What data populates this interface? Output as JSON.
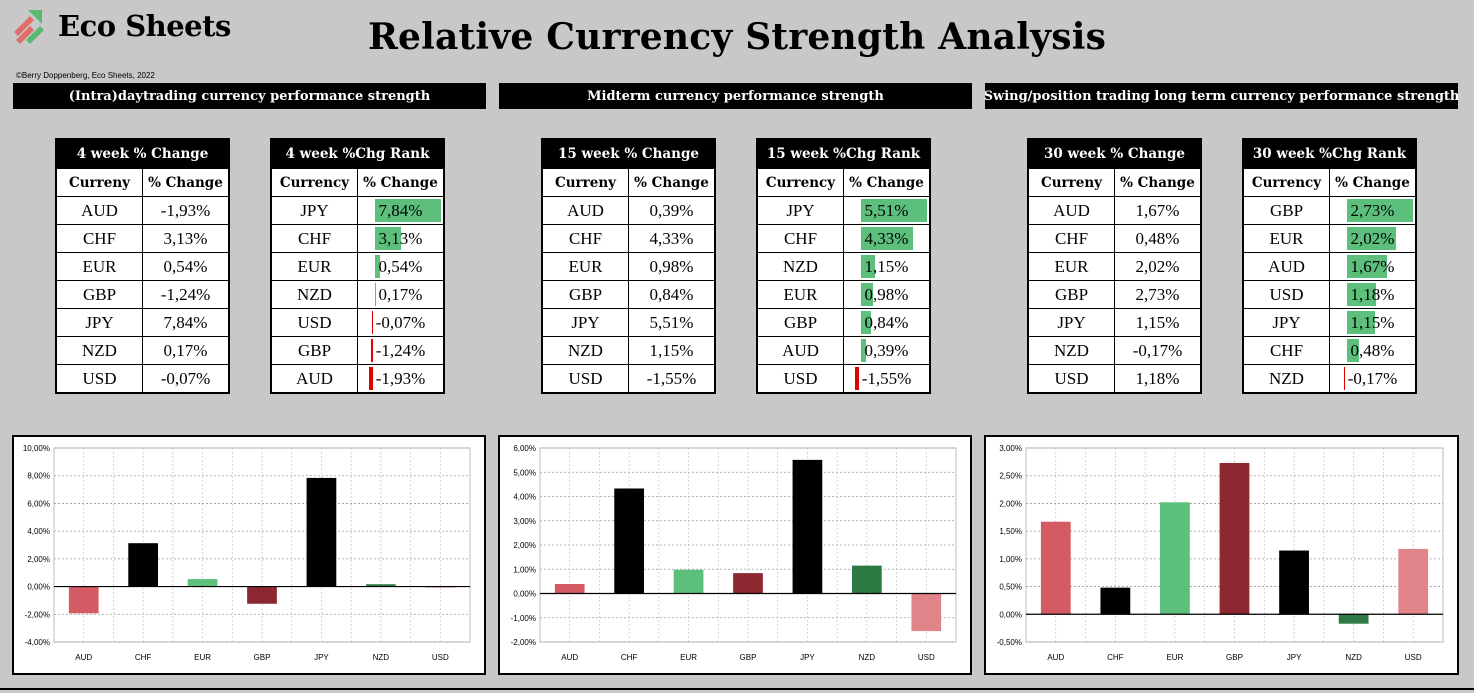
{
  "brand": {
    "name": "Eco Sheets",
    "logo_colors": [
      "#e06c6c",
      "#59b96e"
    ]
  },
  "copyright": "©Berry Doppenberg, Eco Sheets, 2022",
  "title": "Relative Currency Strength Analysis",
  "colors": {
    "positive": "#5cbf7c",
    "negative": "#e00000"
  },
  "sections": [
    {
      "header": "(Intra)daytrading currency performance strength",
      "change_table": {
        "title": "4 week % Change",
        "col1": "Curreny",
        "col2": "% Change",
        "rows": [
          {
            "currency": "AUD",
            "value": "-1,93%"
          },
          {
            "currency": "CHF",
            "value": "3,13%"
          },
          {
            "currency": "EUR",
            "value": "0,54%"
          },
          {
            "currency": "GBP",
            "value": "-1,24%"
          },
          {
            "currency": "JPY",
            "value": "7,84%"
          },
          {
            "currency": "NZD",
            "value": "0,17%"
          },
          {
            "currency": "USD",
            "value": "-0,07%"
          }
        ]
      },
      "rank_table": {
        "title": "4 week %Chg Rank",
        "col1": "Currency",
        "col2": "% Change",
        "rows": [
          {
            "currency": "JPY",
            "value": "7,84%",
            "num": 7.84
          },
          {
            "currency": "CHF",
            "value": "3,13%",
            "num": 3.13
          },
          {
            "currency": "EUR",
            "value": "0,54%",
            "num": 0.54
          },
          {
            "currency": "NZD",
            "value": "0,17%",
            "num": 0.17
          },
          {
            "currency": "USD",
            "value": "-0,07%",
            "num": -0.07
          },
          {
            "currency": "GBP",
            "value": "-1,24%",
            "num": -1.24
          },
          {
            "currency": "AUD",
            "value": "-1,93%",
            "num": -1.93
          }
        ]
      }
    },
    {
      "header": "Midterm currency performance strength",
      "change_table": {
        "title": "15 week % Change",
        "col1": "Curreny",
        "col2": "% Change",
        "rows": [
          {
            "currency": "AUD",
            "value": "0,39%"
          },
          {
            "currency": "CHF",
            "value": "4,33%"
          },
          {
            "currency": "EUR",
            "value": "0,98%"
          },
          {
            "currency": "GBP",
            "value": "0,84%"
          },
          {
            "currency": "JPY",
            "value": "5,51%"
          },
          {
            "currency": "NZD",
            "value": "1,15%"
          },
          {
            "currency": "USD",
            "value": "-1,55%"
          }
        ]
      },
      "rank_table": {
        "title": "15 week %Chg Rank",
        "col1": "Currency",
        "col2": "% Change",
        "rows": [
          {
            "currency": "JPY",
            "value": "5,51%",
            "num": 5.51
          },
          {
            "currency": "CHF",
            "value": "4,33%",
            "num": 4.33
          },
          {
            "currency": "NZD",
            "value": "1,15%",
            "num": 1.15
          },
          {
            "currency": "EUR",
            "value": "0,98%",
            "num": 0.98
          },
          {
            "currency": "GBP",
            "value": "0,84%",
            "num": 0.84
          },
          {
            "currency": "AUD",
            "value": "0,39%",
            "num": 0.39
          },
          {
            "currency": "USD",
            "value": "-1,55%",
            "num": -1.55
          }
        ]
      }
    },
    {
      "header": "Swing/position trading long term currency performance strength",
      "change_table": {
        "title": "30 week % Change",
        "col1": "Curreny",
        "col2": "% Change",
        "rows": [
          {
            "currency": "AUD",
            "value": "1,67%"
          },
          {
            "currency": "CHF",
            "value": "0,48%"
          },
          {
            "currency": "EUR",
            "value": "2,02%"
          },
          {
            "currency": "GBP",
            "value": "2,73%"
          },
          {
            "currency": "JPY",
            "value": "1,15%"
          },
          {
            "currency": "NZD",
            "value": "-0,17%"
          },
          {
            "currency": "USD",
            "value": "1,18%"
          }
        ]
      },
      "rank_table": {
        "title": "30 week %Chg Rank",
        "col1": "Currency",
        "col2": "% Change",
        "rows": [
          {
            "currency": "GBP",
            "value": "2,73%",
            "num": 2.73
          },
          {
            "currency": "EUR",
            "value": "2,02%",
            "num": 2.02
          },
          {
            "currency": "AUD",
            "value": "1,67%",
            "num": 1.67
          },
          {
            "currency": "USD",
            "value": "1,18%",
            "num": 1.18
          },
          {
            "currency": "JPY",
            "value": "1,15%",
            "num": 1.15
          },
          {
            "currency": "CHF",
            "value": "0,48%",
            "num": 0.48
          },
          {
            "currency": "NZD",
            "value": "-0,17%",
            "num": -0.17
          }
        ]
      }
    }
  ],
  "chart_data": [
    {
      "type": "bar",
      "title": "4 week % Change",
      "categories": [
        "AUD",
        "CHF",
        "EUR",
        "GBP",
        "JPY",
        "NZD",
        "USD"
      ],
      "values": [
        -1.93,
        3.13,
        0.54,
        -1.24,
        7.84,
        0.17,
        -0.07
      ],
      "bar_colors": [
        "#d45a64",
        "#000000",
        "#5cbf7c",
        "#8c2630",
        "#000000",
        "#2e7a45",
        "#e0848a"
      ],
      "ylim": [
        -4,
        10
      ],
      "ytick_step": 2,
      "ytick_labels": [
        "10,00%",
        "8,00%",
        "6,00%",
        "4,00%",
        "2,00%",
        "0,00%",
        "-2,00%",
        "-4,00%"
      ],
      "grid": true,
      "legend": "none"
    },
    {
      "type": "bar",
      "title": "15 week % Change",
      "categories": [
        "AUD",
        "CHF",
        "EUR",
        "GBP",
        "JPY",
        "NZD",
        "USD"
      ],
      "values": [
        0.39,
        4.33,
        0.98,
        0.84,
        5.51,
        1.15,
        -1.55
      ],
      "bar_colors": [
        "#d45a64",
        "#000000",
        "#5cbf7c",
        "#8c2630",
        "#000000",
        "#2e7a45",
        "#e0848a"
      ],
      "ylim": [
        -2,
        6
      ],
      "ytick_step": 1,
      "ytick_labels": [
        "6,00%",
        "5,00%",
        "4,00%",
        "3,00%",
        "2,00%",
        "1,00%",
        "0,00%",
        "-1,00%",
        "-2,00%"
      ],
      "grid": true,
      "legend": "none"
    },
    {
      "type": "bar",
      "title": "30 week % Change",
      "categories": [
        "AUD",
        "CHF",
        "EUR",
        "GBP",
        "JPY",
        "NZD",
        "USD"
      ],
      "values": [
        1.67,
        0.48,
        2.02,
        2.73,
        1.15,
        -0.17,
        1.18
      ],
      "bar_colors": [
        "#d45a64",
        "#000000",
        "#5cbf7c",
        "#8c2630",
        "#000000",
        "#2e7a45",
        "#e0848a"
      ],
      "ylim": [
        -0.5,
        3
      ],
      "ytick_step": 0.5,
      "ytick_labels": [
        "3,00%",
        "2,50%",
        "2,00%",
        "1,50%",
        "1,00%",
        "0,50%",
        "0,00%",
        "-0,50%"
      ],
      "grid": true,
      "legend": "none"
    }
  ]
}
